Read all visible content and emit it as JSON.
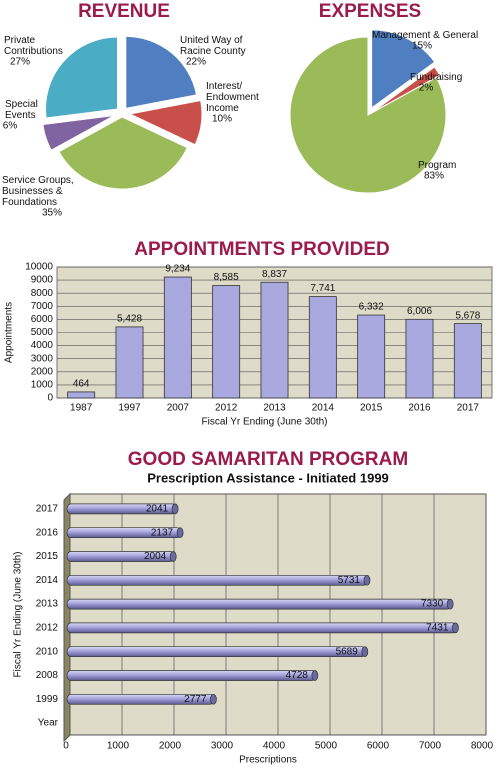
{
  "chart_data": [
    {
      "type": "pie",
      "title": "REVENUE",
      "categories": [
        "United Way of Racine County",
        "Interest/ Endowment Income",
        "Service Groups, Businesses & Foundations",
        "Special Events",
        "Private Contributions"
      ],
      "values": [
        22,
        10,
        35,
        6,
        27
      ],
      "value_labels": [
        "22%",
        "10%",
        "35%",
        "6%",
        "27%"
      ],
      "colors": [
        "#4f7fc0",
        "#c9504a",
        "#9bbb59",
        "#8064a2",
        "#4bacc6"
      ]
    },
    {
      "type": "pie",
      "title": "EXPENSES",
      "categories": [
        "Management & General",
        "Fundraising",
        "Program"
      ],
      "values": [
        15,
        2,
        83
      ],
      "value_labels": [
        "15%",
        "2%",
        "83%"
      ],
      "colors": [
        "#4f7fc0",
        "#c9504a",
        "#9bbb59"
      ]
    },
    {
      "type": "bar",
      "title": "APPOINTMENTS PROVIDED",
      "categories": [
        "1987",
        "1997",
        "2007",
        "2012",
        "2013",
        "2014",
        "2015",
        "2016",
        "2017"
      ],
      "values": [
        464,
        5428,
        9234,
        8585,
        8837,
        7741,
        6332,
        6006,
        5678
      ],
      "value_labels": [
        "464",
        "5,428",
        "9,234",
        "8,585",
        "8,837",
        "7,741",
        "6,332",
        "6,006",
        "5,678"
      ],
      "color": "#a9a9e0",
      "ylabel": "Appointments",
      "xlabel": "Fiscal Yr Ending (June 30th)",
      "ylim": [
        0,
        10000
      ],
      "yticks": [
        0,
        1000,
        2000,
        3000,
        4000,
        5000,
        6000,
        7000,
        8000,
        9000,
        10000
      ],
      "grid": true
    },
    {
      "type": "hbar",
      "title": "GOOD SAMARITAN PROGRAM",
      "subtitle": "Prescription Assistance - Initiated 1999",
      "categories": [
        "2017",
        "2016",
        "2015",
        "2014",
        "2013",
        "2012",
        "2010",
        "2008",
        "1999",
        "Year"
      ],
      "values": [
        2041,
        2137,
        2004,
        5731,
        7330,
        7431,
        5689,
        4728,
        2777,
        null
      ],
      "color": "#a9a9e0",
      "xlabel": "Prescriptions",
      "ylabel": "Fiscal Yr Ending (June 30th)",
      "xlim": [
        0,
        8000
      ],
      "xticks": [
        0,
        1000,
        2000,
        3000,
        4000,
        5000,
        6000,
        7000,
        8000
      ],
      "grid": true
    }
  ]
}
